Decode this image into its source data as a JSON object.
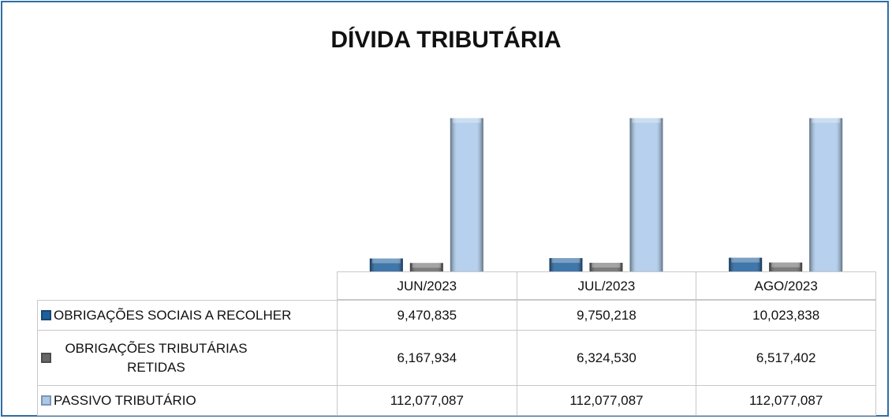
{
  "chart_data": {
    "type": "bar",
    "title": "DÍVIDA TRIBUTÁRIA",
    "categories": [
      "JUN/2023",
      "JUL/2023",
      "AGO/2023"
    ],
    "ylim": [
      0,
      120000000
    ],
    "series": [
      {
        "name": "OBRIGAÇÕES SOCIAIS A RECOLHER",
        "color": "#1f5f9c",
        "values": [
          9470835,
          9750218,
          10023838
        ],
        "value_labels": [
          "9,470,835",
          "9,750,218",
          "10,023,838"
        ]
      },
      {
        "name": "OBRIGAÇÕES TRIBUTÁRIAS RETIDAS",
        "color": "#666666",
        "values": [
          6167934,
          6324530,
          6517402
        ],
        "value_labels": [
          "6,167,934",
          "6,324,530",
          "6,517,402"
        ]
      },
      {
        "name": "PASSIVO TRIBUTÁRIO",
        "color": "#a9c8ea",
        "values": [
          112077087,
          112077087,
          112077087
        ],
        "value_labels": [
          "112,077,087",
          "112,077,087",
          "112,077,087"
        ]
      }
    ]
  }
}
